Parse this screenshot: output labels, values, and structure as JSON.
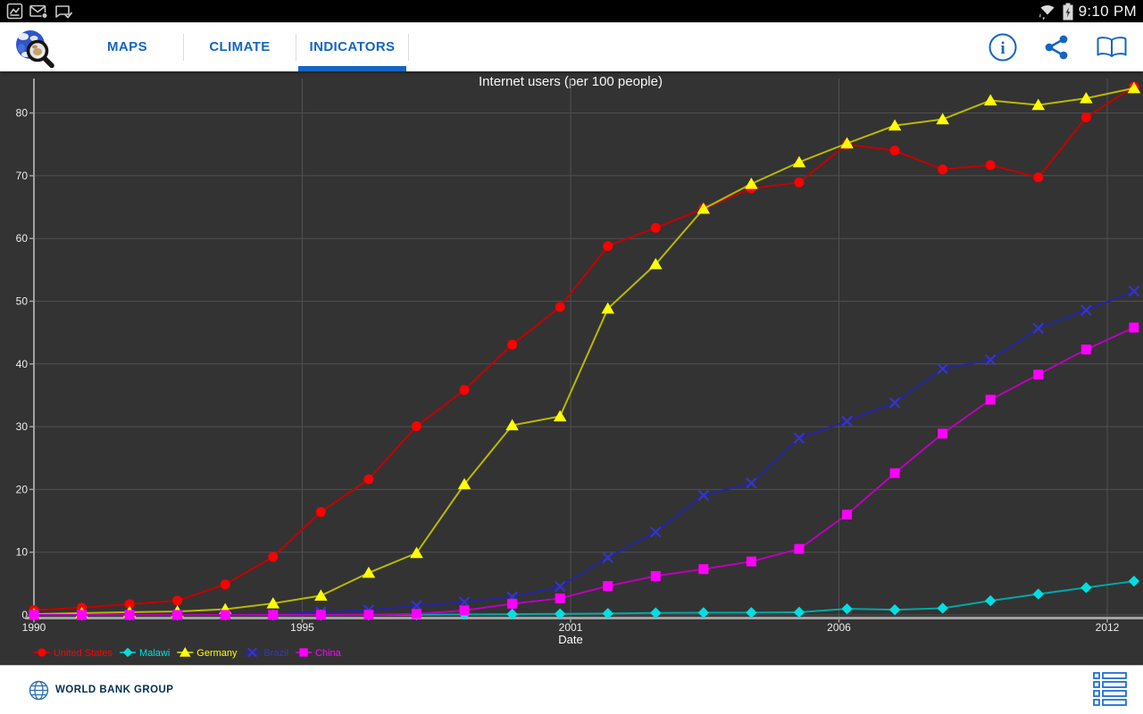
{
  "status_bar": {
    "time": "9:10 PM",
    "notification_icons": [
      "screenshot-icon",
      "email-icon",
      "message-check-icon"
    ],
    "system_icons": [
      "wifi-icon",
      "battery-charging-icon"
    ]
  },
  "nav": {
    "accent_color": "#1565c0",
    "tabs": [
      {
        "label": "MAPS",
        "active": false
      },
      {
        "label": "CLIMATE",
        "active": false
      },
      {
        "label": "INDICATORS",
        "active": true
      }
    ],
    "actions": [
      "info-icon",
      "share-icon",
      "book-icon"
    ]
  },
  "chart_data": {
    "type": "line",
    "title": "Internet users (per 100 people)",
    "xlabel": "Date",
    "ylabel": "",
    "background": "#333333",
    "grid": true,
    "legend_position": "bottom-left",
    "x": [
      1990,
      1991,
      1992,
      1993,
      1994,
      1995,
      1996,
      1997,
      1998,
      1999,
      2000,
      2001,
      2002,
      2003,
      2004,
      2005,
      2006,
      2007,
      2008,
      2009,
      2010,
      2011,
      2012,
      2013
    ],
    "x_tick_labels": [
      "1990",
      "1995",
      "2001",
      "2006",
      "2012"
    ],
    "y_ticks": [
      0,
      10,
      20,
      30,
      40,
      50,
      60,
      70,
      80
    ],
    "ylim": [
      0,
      85
    ],
    "series": [
      {
        "name": "United States",
        "marker": "circle",
        "color": "#ff0000",
        "line_color": "#c40000",
        "values": [
          0.78,
          1.16,
          1.72,
          2.27,
          4.86,
          9.24,
          16.42,
          21.62,
          30.09,
          35.85,
          43.08,
          49.08,
          58.79,
          61.7,
          64.76,
          67.97,
          68.93,
          75.0,
          74.0,
          71.0,
          71.69,
          69.73,
          79.3,
          84.2
        ]
      },
      {
        "name": "Malawi",
        "marker": "diamond",
        "color": "#00e0e0",
        "line_color": "#00a8a8",
        "values": [
          0,
          0,
          0,
          0,
          0,
          0,
          0,
          0.01,
          0.02,
          0.08,
          0.13,
          0.17,
          0.23,
          0.32,
          0.36,
          0.38,
          0.43,
          0.97,
          0.83,
          1.07,
          2.26,
          3.33,
          4.35,
          5.38
        ]
      },
      {
        "name": "Germany",
        "marker": "triangle",
        "color": "#ffff00",
        "line_color": "#b9b900",
        "values": [
          0.13,
          0.3,
          0.44,
          0.56,
          0.91,
          1.84,
          3.07,
          6.71,
          9.87,
          20.84,
          30.22,
          31.65,
          48.82,
          55.9,
          64.73,
          68.71,
          72.16,
          75.16,
          78.0,
          79.0,
          82.0,
          81.27,
          82.35,
          83.96
        ]
      },
      {
        "name": "Brazil",
        "marker": "x",
        "color": "#3535cc",
        "line_color": "#2424a8",
        "values": [
          0,
          0,
          0,
          0,
          0.04,
          0.1,
          0.45,
          0.77,
          1.48,
          2.04,
          2.87,
          4.53,
          9.15,
          13.21,
          19.07,
          21.02,
          28.18,
          30.88,
          33.83,
          39.22,
          40.65,
          45.69,
          48.56,
          51.6
        ]
      },
      {
        "name": "China",
        "marker": "square",
        "color": "#ff00ff",
        "line_color": "#bb00bb",
        "values": [
          0,
          0,
          0,
          0,
          0,
          0.01,
          0.01,
          0.03,
          0.17,
          0.71,
          1.78,
          2.64,
          4.6,
          6.2,
          7.3,
          8.52,
          10.52,
          16.0,
          22.6,
          28.9,
          34.3,
          38.3,
          42.3,
          45.8
        ]
      }
    ]
  },
  "footer": {
    "brand": "WORLD BANK GROUP",
    "icons": [
      "worldbank-globe-logo",
      "list-icon"
    ]
  }
}
